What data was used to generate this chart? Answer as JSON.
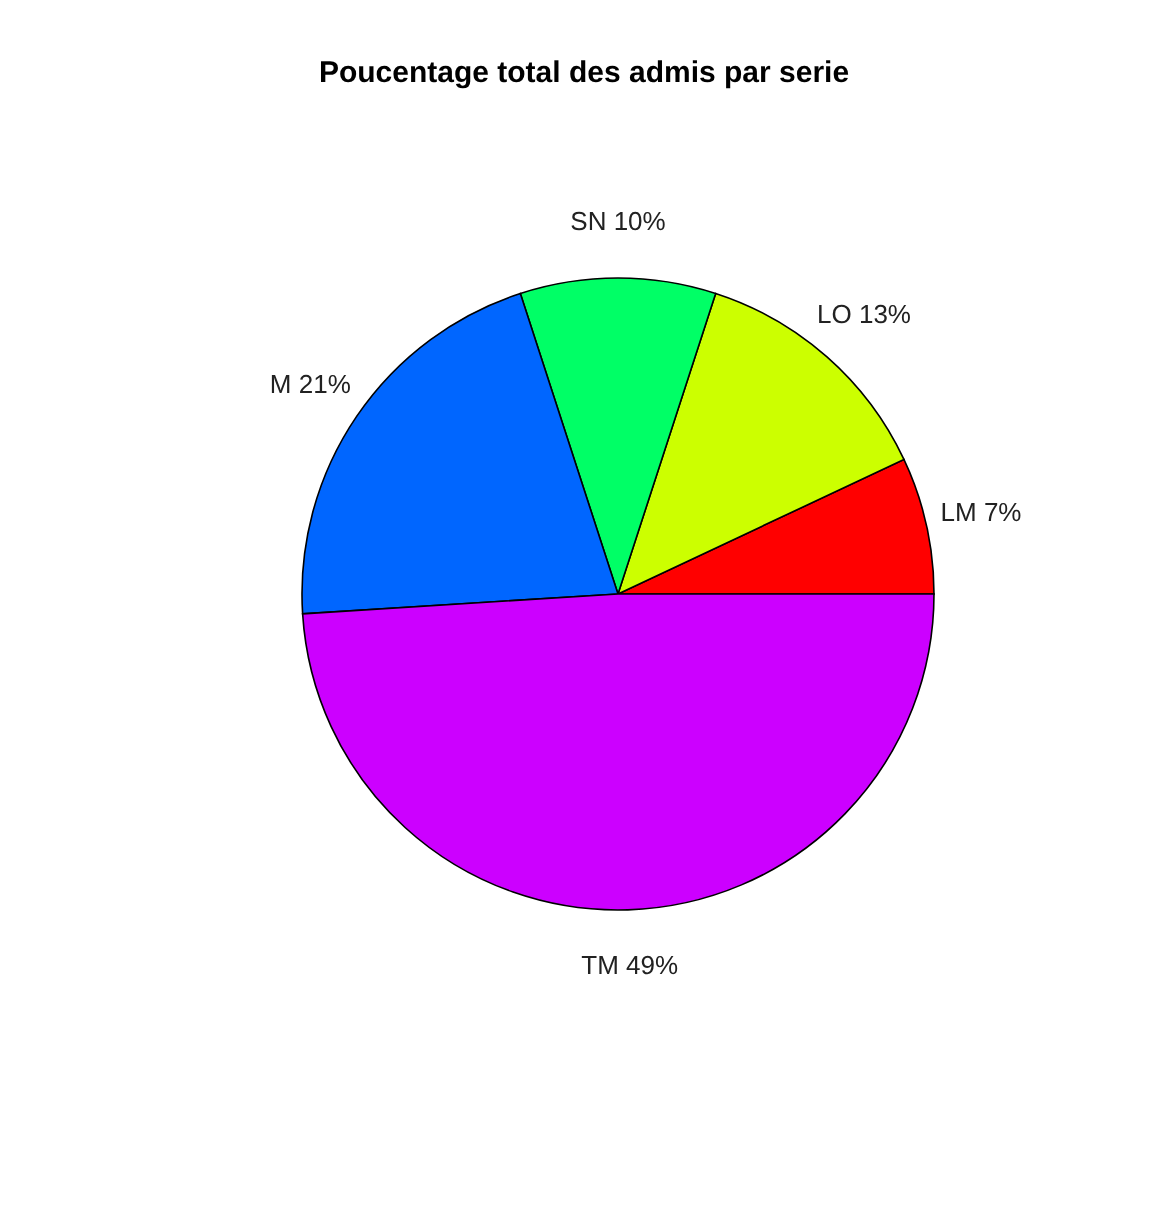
{
  "chart_data": {
    "type": "pie",
    "title": "Poucentage total des admis par serie",
    "categories": [
      "LM",
      "LO",
      "SN",
      "M",
      "TM"
    ],
    "values": [
      7,
      13,
      10,
      21,
      49
    ],
    "value_labels": [
      "7%",
      "13%",
      "10%",
      "21%",
      "49%"
    ],
    "colors": [
      "#ff0000",
      "#ccff00",
      "#00ff66",
      "#0066ff",
      "#cc00ff"
    ]
  }
}
